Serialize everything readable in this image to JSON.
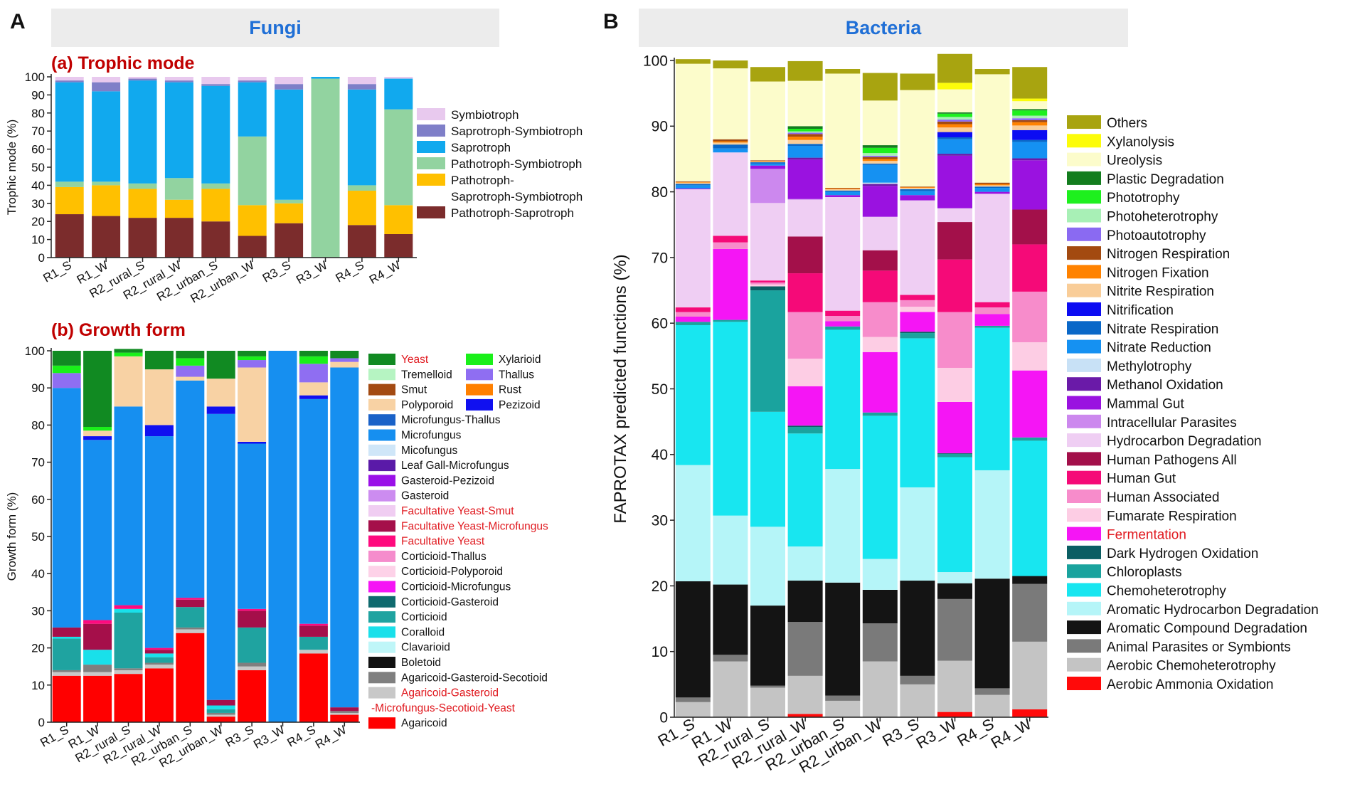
{
  "panels": {
    "left_letter": "A",
    "right_letter": "B",
    "fungi_header": "Fungi",
    "bacteria_header": "Bacteria",
    "trophic_title": "(a) Trophic mode",
    "growth_title": "(b) Growth form"
  },
  "chart_data": [
    {
      "id": "trophic",
      "type": "bar",
      "stacked": true,
      "title": "(a) Trophic mode",
      "ylabel": "Trophic mode (%)",
      "xlabel": "",
      "ylim": [
        0,
        100
      ],
      "yticks": [
        0,
        10,
        20,
        30,
        40,
        50,
        60,
        70,
        80,
        90,
        100
      ],
      "categories": [
        "R1_S",
        "R1_W",
        "R2_rural_S",
        "R2_rural_W",
        "R2_urban_S",
        "R2_urban_W",
        "R3_S",
        "R3_W",
        "R4_S",
        "R4_W"
      ],
      "legend_lines": {
        "Pathotroph-Saprotroph-Symbiotroph": [
          "Pathotroph-",
          "Saprotroph-Symbiotroph"
        ]
      },
      "series": [
        {
          "name": "Pathotroph-Saprotroph",
          "color": "#7b2c2c",
          "values": [
            24,
            23,
            22,
            22,
            20,
            12,
            19,
            0,
            18,
            13
          ]
        },
        {
          "name": "Pathotroph-Saprotroph-Symbiotroph",
          "color": "#ffc000",
          "values": [
            15,
            17,
            16,
            10,
            18,
            17,
            11,
            0,
            19,
            16
          ]
        },
        {
          "name": "Pathotroph-Symbiotroph",
          "color": "#92d3a0",
          "values": [
            3,
            2,
            3,
            12,
            3,
            38,
            2,
            99,
            3,
            53
          ]
        },
        {
          "name": "Saprotroph",
          "color": "#11a9ee",
          "values": [
            55,
            50,
            57,
            53,
            54,
            30,
            61,
            1,
            53,
            17
          ]
        },
        {
          "name": "Saprotroph-Symbiotroph",
          "color": "#7f7fc8",
          "values": [
            1,
            5,
            1,
            1,
            1,
            1,
            3,
            0,
            3,
            0
          ]
        },
        {
          "name": "Symbiotroph",
          "color": "#e8c9ee",
          "values": [
            2,
            3,
            1,
            2,
            4,
            2,
            4,
            0,
            4,
            1
          ]
        }
      ]
    },
    {
      "id": "growth",
      "type": "bar",
      "stacked": true,
      "title": "(b) Growth form",
      "ylabel": "Growth form (%)",
      "xlabel": "",
      "ylim": [
        0,
        100
      ],
      "yticks": [
        0,
        10,
        20,
        30,
        40,
        50,
        60,
        70,
        80,
        90,
        100
      ],
      "categories": [
        "R1_S",
        "R1_W",
        "R2_rural_S",
        "R2_rural_W",
        "R2_urban_S",
        "R2_urban_W",
        "R3_S",
        "R3_W",
        "R4_S",
        "R4_W"
      ],
      "legend_red": [
        "Yeast",
        "Facultative Yeast-Smut",
        "Facultative Yeast-Microfungus",
        "Facultative Yeast",
        "Agaricoid-Gasteroid-Microfungus-Secotioid-Yeast"
      ],
      "legend_lines": {
        "Agaricoid-Gasteroid-Microfungus-Secotioid-Yeast": [
          "Agaricoid-Gasteroid",
          "-Microfungus-Secotioid-Yeast"
        ]
      },
      "series": [
        {
          "name": "Agaricoid",
          "color": "#ff0000",
          "values": [
            12.5,
            12.5,
            13,
            14.5,
            24,
            1.5,
            14,
            0,
            18.5,
            2
          ]
        },
        {
          "name": "Agaricoid-Gasteroid-Microfungus-Secotioid-Yeast",
          "color": "#c8c8c8",
          "values": [
            1,
            1,
            1,
            1,
            1,
            0.5,
            1,
            0,
            1,
            0.5
          ]
        },
        {
          "name": "Agaricoid-Gasteroid-Secotioid",
          "color": "#7f7f7f",
          "values": [
            0.5,
            2,
            0.5,
            0.5,
            0.5,
            0.5,
            1,
            0,
            0,
            0.5
          ]
        },
        {
          "name": "Corticioid",
          "color": "#1fa3a0",
          "values": [
            8.5,
            0,
            15,
            1.5,
            5.5,
            1,
            9.5,
            0,
            3.5,
            0
          ]
        },
        {
          "name": "Clavarioid",
          "color": "#bff6f8",
          "values": [
            0,
            0,
            0,
            0,
            0,
            0,
            0,
            0,
            0,
            0
          ]
        },
        {
          "name": "Coralloid",
          "color": "#19e0ea",
          "values": [
            0.5,
            4,
            1,
            1,
            0,
            1,
            0,
            0,
            0,
            0
          ]
        },
        {
          "name": "Facultative Yeast-Microfungus",
          "color": "#a50f4a",
          "values": [
            2.5,
            7,
            0,
            1,
            2,
            1.5,
            4.5,
            0,
            3,
            1
          ]
        },
        {
          "name": "Facultative Yeast",
          "color": "#ff0a7e",
          "values": [
            0,
            1,
            1,
            0.5,
            0.5,
            0,
            0.5,
            0,
            0.5,
            0
          ]
        },
        {
          "name": "Microfungus",
          "color": "#168ff0",
          "values": [
            64.5,
            48.5,
            53.5,
            57,
            58.5,
            77,
            44.5,
            100,
            60.5,
            91.5
          ]
        },
        {
          "name": "Pezizoid",
          "color": "#1010f0",
          "values": [
            0,
            1,
            0,
            3,
            0,
            2,
            0.5,
            0,
            1,
            0
          ]
        },
        {
          "name": "Polyporoid",
          "color": "#f8d2a4",
          "values": [
            0,
            1.5,
            13.5,
            15,
            1,
            7.5,
            20,
            0,
            3.5,
            1.5
          ]
        },
        {
          "name": "Thallus",
          "color": "#8f6ef2",
          "values": [
            4,
            0,
            0,
            0,
            3,
            0,
            2,
            0,
            5,
            1
          ]
        },
        {
          "name": "Xylarioid",
          "color": "#1af01a",
          "values": [
            2,
            1,
            1,
            0,
            2,
            0,
            1,
            0,
            2,
            0
          ]
        },
        {
          "name": "Yeast",
          "color": "#118a22",
          "values": [
            4,
            20.5,
            1,
            5,
            2,
            7.5,
            1.5,
            0,
            1.5,
            2
          ]
        }
      ],
      "legend_items": [
        "Yeast",
        "Tremelloid",
        "Smut",
        "Polyporoid",
        "Microfungus-Thallus",
        "Microfungus",
        "Micofungus",
        "Leaf Gall-Microfungus",
        "Gasteroid-Pezizoid",
        "Gasteroid",
        "Facultative Yeast-Smut",
        "Facultative Yeast-Microfungus",
        "Facultative Yeast",
        "Corticioid-Thallus",
        "Corticioid-Polyporoid",
        "Corticioid-Microfungus",
        "Corticioid-Gasteroid",
        "Corticioid",
        "Coralloid",
        "Clavarioid",
        "Boletoid",
        "Agaricoid-Gasteroid-Secotioid",
        "Agaricoid-Gasteroid-Microfungus-Secotioid-Yeast",
        "Agaricoid"
      ],
      "legend_items_col2": [
        "Xylarioid",
        "Thallus",
        "Rust",
        "Pezizoid"
      ],
      "legend_colors": {
        "Yeast": "#118a22",
        "Tremelloid": "#b6f4c2",
        "Smut": "#a34a12",
        "Polyporoid": "#f8d2a4",
        "Microfungus-Thallus": "#1a62c8",
        "Microfungus": "#168ff0",
        "Micofungus": "#cfe6f8",
        "Leaf Gall-Microfungus": "#5a1aa8",
        "Gasteroid-Pezizoid": "#9a10e8",
        "Gasteroid": "#cc8cf0",
        "Facultative Yeast-Smut": "#f0cdf2",
        "Facultative Yeast-Microfungus": "#a50f4a",
        "Facultative Yeast": "#ff0a7e",
        "Corticioid-Thallus": "#f58ccc",
        "Corticioid-Polyporoid": "#fdd2e8",
        "Corticioid-Microfungus": "#f514f5",
        "Corticioid-Gasteroid": "#0f6a6e",
        "Corticioid": "#1fa3a0",
        "Coralloid": "#19e0ea",
        "Clavarioid": "#bff6f8",
        "Boletoid": "#111111",
        "Agaricoid-Gasteroid-Secotioid": "#7f7f7f",
        "Agaricoid-Gasteroid-Microfungus-Secotioid-Yeast": "#c8c8c8",
        "Agaricoid": "#ff0000",
        "Xylarioid": "#1af01a",
        "Thallus": "#8f6ef2",
        "Rust": "#ff8000",
        "Pezizoid": "#1010f0"
      }
    },
    {
      "id": "faprotax",
      "type": "bar",
      "stacked": true,
      "title": "Bacteria",
      "ylabel": "FAPROTAX predicted functions (%)",
      "xlabel": "",
      "ylim": [
        0,
        100
      ],
      "yticks": [
        0,
        10,
        20,
        30,
        40,
        50,
        60,
        70,
        80,
        90,
        100
      ],
      "categories": [
        "R1_S",
        "R1_W",
        "R2_rural_S",
        "R2_rural_W",
        "R2_urban_S",
        "R2_urban_W",
        "R3_S",
        "R3_W",
        "R4_S",
        "R4_W"
      ],
      "legend_red": [
        "Fermentation"
      ],
      "series": [
        {
          "name": "Aerobic Ammonia Oxidation",
          "color": "#ff0a0a",
          "values": [
            0,
            0,
            0,
            0.5,
            0,
            0,
            0,
            0.8,
            0,
            1.2
          ]
        },
        {
          "name": "Aerobic Chemoheterotrophy",
          "color": "#c4c4c4",
          "values": [
            2.3,
            8.5,
            4.5,
            5.8,
            2.5,
            8.5,
            5,
            7.8,
            3.4,
            10.3
          ]
        },
        {
          "name": "Animal Parasites or Symbionts",
          "color": "#7a7a7a",
          "values": [
            0.7,
            1,
            0.3,
            8.2,
            0.8,
            5.8,
            1.3,
            9.4,
            1,
            8.8
          ]
        },
        {
          "name": "Aromatic Compound Degradation",
          "color": "#141414",
          "values": [
            17.7,
            10.7,
            12.2,
            6.3,
            17.2,
            5.1,
            14.5,
            2.4,
            16.7,
            1.2
          ]
        },
        {
          "name": "Aromatic Hydrocarbon Degradation",
          "color": "#b5f5f8",
          "values": [
            17.7,
            10.5,
            12,
            5.2,
            17.3,
            4.7,
            14.2,
            1.7,
            16.5,
            0
          ]
        },
        {
          "name": "Chemoheterotrophy",
          "color": "#18e6f0",
          "values": [
            21.3,
            29.5,
            17.5,
            17.2,
            21.2,
            21.8,
            22.7,
            17.5,
            21.7,
            20.6
          ]
        },
        {
          "name": "Chloroplasts",
          "color": "#1aa39e",
          "values": [
            0.5,
            0.3,
            18.5,
            1,
            0.5,
            0.5,
            0.8,
            0.5,
            0.3,
            0.5
          ]
        },
        {
          "name": "Dark Hydrogen Oxidation",
          "color": "#0b5e63",
          "values": [
            0,
            0,
            0.6,
            0.2,
            0,
            0,
            0.2,
            0.1,
            0,
            0
          ]
        },
        {
          "name": "Fermentation",
          "color": "#f515f5",
          "values": [
            0.8,
            10.8,
            0,
            6,
            0.8,
            9.2,
            3,
            7.8,
            1.8,
            10.2
          ]
        },
        {
          "name": "Fumarate Respiration",
          "color": "#fdcde4",
          "values": [
            0,
            0,
            0.3,
            4.2,
            0,
            2.3,
            0.8,
            5.2,
            0,
            4.3
          ]
        },
        {
          "name": "Human Associated",
          "color": "#f78ccb",
          "values": [
            0.7,
            1,
            0.3,
            7.1,
            0.8,
            5.3,
            1,
            8.5,
            1,
            7.7
          ]
        },
        {
          "name": "Human Gut",
          "color": "#f50a78",
          "values": [
            0.7,
            1,
            0.3,
            5.9,
            0.8,
            4.8,
            0.8,
            8,
            0.8,
            7.2
          ]
        },
        {
          "name": "Human Pathogens All",
          "color": "#a3104a",
          "values": [
            0,
            0,
            0,
            5.6,
            0,
            3.1,
            0,
            5.7,
            0,
            5.3
          ]
        },
        {
          "name": "Hydrocarbon Degradation",
          "color": "#efcef3",
          "values": [
            18,
            12.7,
            11.8,
            5.6,
            17.3,
            5.1,
            14.4,
            2.1,
            16.5,
            0
          ]
        },
        {
          "name": "Intracellular Parasites",
          "color": "#cc88ee",
          "values": [
            0,
            0,
            5.2,
            0.1,
            0,
            0,
            0,
            0,
            0,
            0
          ]
        },
        {
          "name": "Mammal Gut",
          "color": "#9a12e0",
          "values": [
            0.1,
            0,
            0.5,
            6,
            0.3,
            4.7,
            0.8,
            8,
            0.3,
            7.5
          ]
        },
        {
          "name": "Methanol Oxidation",
          "color": "#6a1aa8",
          "values": [
            0,
            0,
            0,
            0.3,
            0,
            0.3,
            0,
            0.3,
            0,
            0.3
          ]
        },
        {
          "name": "Methylotrophy",
          "color": "#c8e1f6",
          "values": [
            0,
            0,
            0,
            0,
            0,
            0.2,
            0,
            0,
            0,
            0
          ]
        },
        {
          "name": "Nitrate Reduction",
          "color": "#1591f2",
          "values": [
            0.5,
            0.6,
            0.3,
            1.8,
            0.5,
            2.7,
            0.6,
            2.2,
            0.6,
            2.5
          ]
        },
        {
          "name": "Nitrate Respiration",
          "color": "#0a68c8",
          "values": [
            0.2,
            0.6,
            0.2,
            0.3,
            0.2,
            0.2,
            0.3,
            0.3,
            0.2,
            0.3
          ]
        },
        {
          "name": "Nitrification",
          "color": "#0c0cf2",
          "values": [
            0,
            0,
            0,
            0,
            0,
            0,
            0,
            0.8,
            0,
            1.5
          ]
        },
        {
          "name": "Nitrite Respiration",
          "color": "#f9cd98",
          "values": [
            0.2,
            0.3,
            0.1,
            0.6,
            0.2,
            0.4,
            0.2,
            0.7,
            0.2,
            0.7
          ]
        },
        {
          "name": "Nitrogen Fixation",
          "color": "#ff8200",
          "values": [
            0.1,
            0.2,
            0.1,
            0.5,
            0.1,
            0.3,
            0.1,
            0.5,
            0.2,
            0.5
          ]
        },
        {
          "name": "Nitrogen Respiration",
          "color": "#a34a10",
          "values": [
            0.1,
            0.3,
            0.1,
            0.4,
            0.1,
            0.3,
            0.1,
            0.4,
            0.2,
            0.3
          ]
        },
        {
          "name": "Photoautotrophy",
          "color": "#8a6af2",
          "values": [
            0,
            0,
            0,
            0.2,
            0,
            0.2,
            0,
            0.3,
            0,
            0.3
          ]
        },
        {
          "name": "Photoheterotrophy",
          "color": "#a8f0b6",
          "values": [
            0,
            0,
            0,
            0.2,
            0,
            0.4,
            0,
            0.4,
            0,
            0.4
          ]
        },
        {
          "name": "Phototrophy",
          "color": "#1ef01e",
          "values": [
            0,
            0,
            0,
            0.4,
            0,
            0.8,
            0,
            0.5,
            0,
            0.8
          ]
        },
        {
          "name": "Plastic Degradation",
          "color": "#137d1e",
          "values": [
            0,
            0,
            0,
            0.4,
            0,
            0.4,
            0,
            0.2,
            0,
            0.2
          ]
        },
        {
          "name": "Ureolysis",
          "color": "#fcfccb",
          "values": [
            17.9,
            10.8,
            12,
            6.9,
            17.4,
            6.8,
            14.7,
            3.5,
            16.5,
            1.2
          ]
        },
        {
          "name": "Xylanolysis",
          "color": "#fcfc0a",
          "values": [
            0,
            0,
            0,
            0,
            0,
            0,
            0,
            1,
            0,
            0.4
          ]
        },
        {
          "name": "Others",
          "color": "#a8a410",
          "values": [
            0.7,
            1.2,
            2.2,
            3,
            0.7,
            4.2,
            2.5,
            4.4,
            0.8,
            4.8
          ]
        }
      ]
    }
  ]
}
